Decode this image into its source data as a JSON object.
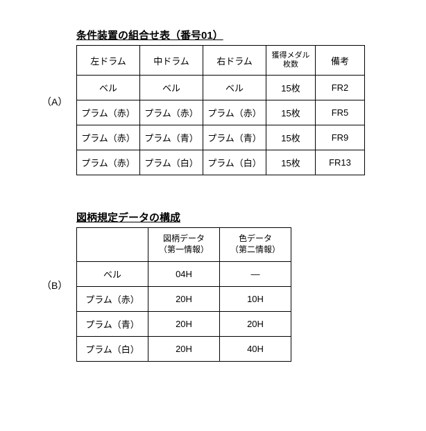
{
  "tableA": {
    "label": "（A）",
    "title": "条件装置の組合せ表（番号01）",
    "columns": [
      "左ドラム",
      "中ドラム",
      "右ドラム",
      "獲得メダル\n枚数",
      "備考"
    ],
    "rows": [
      [
        "ベル",
        "ベル",
        "ベル",
        "15枚",
        "FR2"
      ],
      [
        "プラム（赤）",
        "プラム（赤）",
        "プラム（赤）",
        "15枚",
        "FR5"
      ],
      [
        "プラム（赤）",
        "プラム（青）",
        "プラム（青）",
        "15枚",
        "FR9"
      ],
      [
        "プラム（赤）",
        "プラム（白）",
        "プラム（白）",
        "15枚",
        "FR13"
      ]
    ]
  },
  "tableB": {
    "label": "（B）",
    "title": "図柄規定データの構成",
    "columns": [
      "",
      "図柄データ\n（第一情報）",
      "色データ\n（第二情報）"
    ],
    "rows": [
      [
        "ベル",
        "04H",
        "―"
      ],
      [
        "プラム（赤）",
        "20H",
        "10H"
      ],
      [
        "プラム（青）",
        "20H",
        "20H"
      ],
      [
        "プラム（白）",
        "20H",
        "40H"
      ]
    ]
  }
}
